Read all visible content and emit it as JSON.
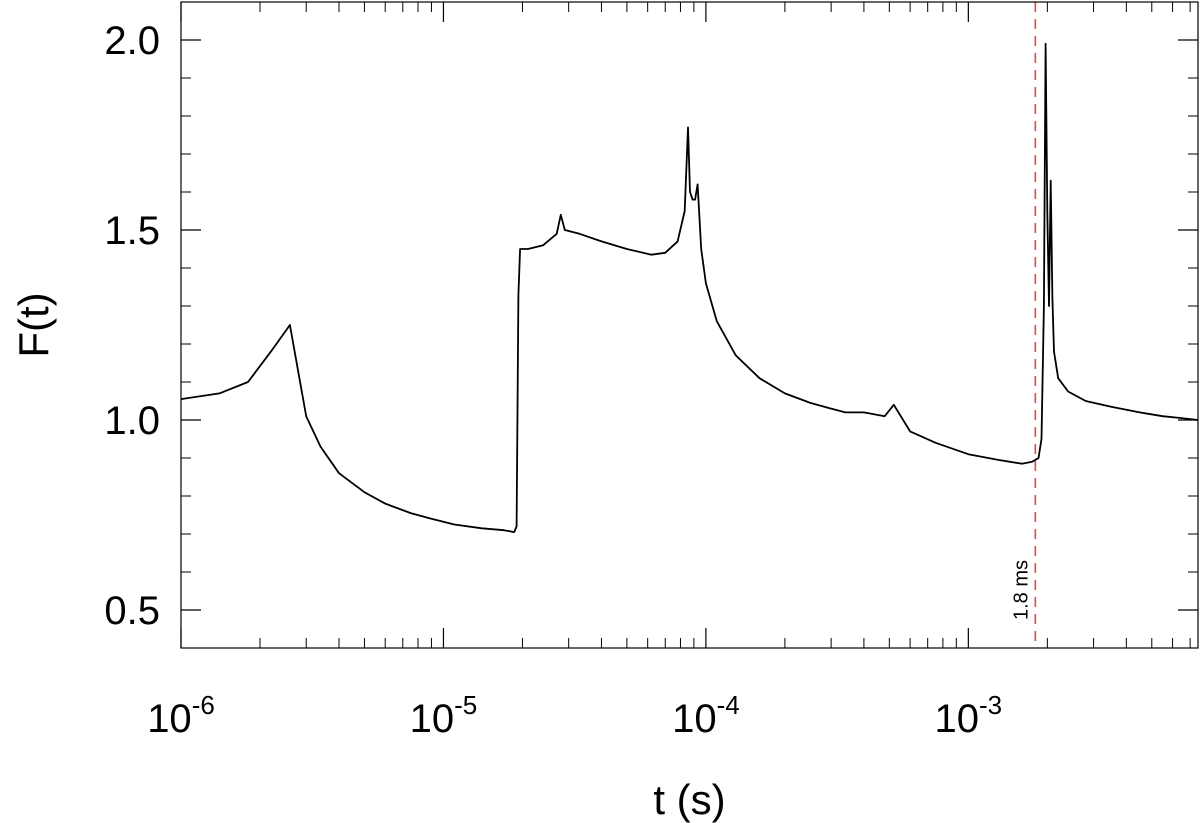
{
  "chart_data": {
    "type": "line",
    "xlabel": "t (s)",
    "ylabel": "F(t)",
    "x_scale": "log",
    "xlim": [
      1e-06,
      0.0075
    ],
    "ylim": [
      0.4,
      2.1
    ],
    "x_major_ticks": [
      {
        "value": 1e-06,
        "base": "10",
        "exp": "-6"
      },
      {
        "value": 1e-05,
        "base": "10",
        "exp": "-5"
      },
      {
        "value": 0.0001,
        "base": "10",
        "exp": "-4"
      },
      {
        "value": 0.001,
        "base": "10",
        "exp": "-3"
      }
    ],
    "y_major_ticks": [
      {
        "value": 0.5,
        "label": "0.5"
      },
      {
        "value": 1.0,
        "label": "1.0"
      },
      {
        "value": 1.5,
        "label": "1.5"
      },
      {
        "value": 2.0,
        "label": "2.0"
      }
    ],
    "y_minor_ticks": [
      0.6,
      0.7,
      0.8,
      0.9,
      1.1,
      1.2,
      1.3,
      1.4,
      1.6,
      1.7,
      1.8,
      1.9
    ],
    "grid": false,
    "series_color": "#000000",
    "marker_color": "#e8453c",
    "vline": {
      "x": 0.0018,
      "label": "1.8 ms"
    },
    "series": [
      {
        "x": [
          1e-06,
          1.4e-06,
          1.8e-06,
          2.2e-06,
          2.6e-06,
          3e-06,
          3.4e-06,
          4e-06,
          5e-06,
          6e-06,
          7.5e-06,
          9e-06,
          1.1e-05,
          1.4e-05,
          1.7e-05,
          1.86e-05,
          1.9e-05,
          1.93e-05,
          1.96e-05,
          2.1e-05,
          2.4e-05,
          2.7e-05,
          2.8e-05,
          2.9e-05,
          3.3e-05,
          4e-05,
          5e-05,
          6.2e-05,
          7e-05,
          7.8e-05,
          8.3e-05,
          8.55e-05,
          8.7e-05,
          8.9e-05,
          9.1e-05,
          9.3e-05,
          9.6e-05,
          0.0001,
          0.00011,
          0.00013,
          0.00016,
          0.0002,
          0.00025,
          0.0003,
          0.00034,
          0.0004,
          0.00048,
          0.00052,
          0.0006,
          0.00075,
          0.001,
          0.0013,
          0.0016,
          0.00175,
          0.00185,
          0.0019,
          0.00194,
          0.00197,
          0.002,
          0.00203,
          0.00206,
          0.00209,
          0.00212,
          0.0022,
          0.0024,
          0.0028,
          0.0035,
          0.0045,
          0.0055,
          0.0065,
          0.0075
        ],
        "y": [
          1.055,
          1.07,
          1.1,
          1.18,
          1.25,
          1.01,
          0.93,
          0.86,
          0.81,
          0.78,
          0.755,
          0.74,
          0.725,
          0.715,
          0.71,
          0.705,
          0.72,
          1.33,
          1.45,
          1.45,
          1.46,
          1.49,
          1.54,
          1.5,
          1.49,
          1.47,
          1.45,
          1.435,
          1.44,
          1.47,
          1.55,
          1.77,
          1.6,
          1.58,
          1.58,
          1.62,
          1.45,
          1.36,
          1.26,
          1.17,
          1.11,
          1.07,
          1.045,
          1.03,
          1.02,
          1.02,
          1.01,
          1.04,
          0.97,
          0.94,
          0.91,
          0.895,
          0.885,
          0.89,
          0.9,
          0.95,
          1.3,
          1.99,
          1.55,
          1.3,
          1.63,
          1.32,
          1.18,
          1.11,
          1.075,
          1.05,
          1.035,
          1.02,
          1.01,
          1.005,
          1.0
        ]
      }
    ]
  }
}
